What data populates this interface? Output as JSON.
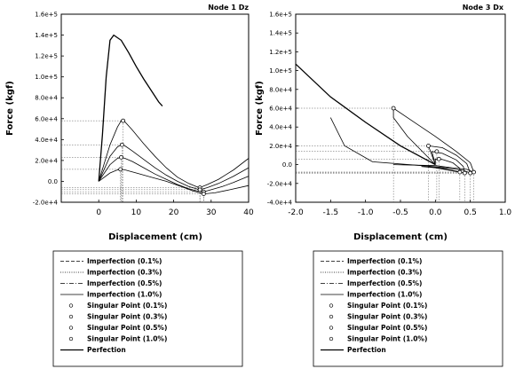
{
  "chart_data": [
    {
      "type": "line",
      "title": "Node 1 Dz",
      "xlabel": "Displacement (cm)",
      "ylabel": "Force (kgf)",
      "xlim": [
        -10,
        40
      ],
      "ylim": [
        -20000,
        160000
      ],
      "xticks": [
        0,
        10,
        20,
        30,
        40
      ],
      "xtick_labels": [
        "0",
        "10",
        "20",
        "30",
        "40"
      ],
      "yticks": [
        -20000,
        0,
        20000,
        40000,
        60000,
        80000,
        100000,
        120000,
        140000,
        160000
      ],
      "ytick_labels": [
        "-2.0e+4",
        "0.0",
        "2.0e+4",
        "4.0e+4",
        "6.0e+4",
        "8.0e+4",
        "1.0e+5",
        "1.2e+5",
        "1.4e+5",
        "1.6e+5"
      ],
      "series": [
        {
          "name": "Perfection",
          "style": "solid",
          "points": [
            [
              0,
              0
            ],
            [
              1,
              45000
            ],
            [
              2,
              100000
            ],
            [
              3,
              135000
            ],
            [
              4,
              140000
            ],
            [
              6,
              135000
            ],
            [
              8,
              123000
            ],
            [
              10,
              110000
            ],
            [
              12,
              98000
            ],
            [
              14,
              87000
            ],
            [
              16,
              76000
            ],
            [
              17,
              72000
            ]
          ]
        },
        {
          "name": "Imperfection (0.1%)",
          "style": "solid",
          "points": [
            [
              0,
              0
            ],
            [
              3,
              35000
            ],
            [
              5,
              52000
            ],
            [
              6,
              58000
            ],
            [
              7,
              57000
            ],
            [
              9,
              49000
            ],
            [
              12,
              36000
            ],
            [
              15,
              24000
            ],
            [
              18,
              13000
            ],
            [
              21,
              4000
            ],
            [
              24,
              -2000
            ],
            [
              26,
              -5000
            ],
            [
              27,
              -6000
            ],
            [
              29,
              -3000
            ],
            [
              32,
              2000
            ],
            [
              36,
              11000
            ],
            [
              40,
              22000
            ]
          ]
        },
        {
          "name": "Imperfection (0.3%)",
          "style": "solid",
          "points": [
            [
              0,
              0
            ],
            [
              3,
              24000
            ],
            [
              5,
              33000
            ],
            [
              6,
              35000
            ],
            [
              7,
              34000
            ],
            [
              9,
              29000
            ],
            [
              12,
              21000
            ],
            [
              15,
              13000
            ],
            [
              18,
              6000
            ],
            [
              21,
              0
            ],
            [
              24,
              -5000
            ],
            [
              26,
              -7000
            ],
            [
              27,
              -8000
            ],
            [
              29,
              -6000
            ],
            [
              32,
              -2000
            ],
            [
              36,
              5000
            ],
            [
              40,
              13000
            ]
          ]
        },
        {
          "name": "Imperfection (0.5%)",
          "style": "solid",
          "points": [
            [
              0,
              0
            ],
            [
              3,
              16000
            ],
            [
              5,
              22000
            ],
            [
              6,
              23000
            ],
            [
              7,
              22000
            ],
            [
              9,
              19000
            ],
            [
              12,
              13000
            ],
            [
              15,
              7000
            ],
            [
              18,
              2000
            ],
            [
              21,
              -3000
            ],
            [
              24,
              -7000
            ],
            [
              26,
              -9000
            ],
            [
              28,
              -10000
            ],
            [
              30,
              -8000
            ],
            [
              33,
              -5000
            ],
            [
              36,
              -1000
            ],
            [
              40,
              5000
            ]
          ]
        },
        {
          "name": "Imperfection (1.0%)",
          "style": "solid",
          "points": [
            [
              0,
              0
            ],
            [
              3,
              8000
            ],
            [
              5,
              11000
            ],
            [
              6,
              11500
            ],
            [
              7,
              11000
            ],
            [
              10,
              8000
            ],
            [
              14,
              4000
            ],
            [
              18,
              0
            ],
            [
              22,
              -5000
            ],
            [
              25,
              -9000
            ],
            [
              28,
              -12000
            ],
            [
              31,
              -11000
            ],
            [
              35,
              -8000
            ],
            [
              40,
              -4000
            ]
          ]
        }
      ],
      "singular_points": [
        {
          "name": "Singular Point (0.1%)",
          "points": [
            [
              6.5,
              58000
            ],
            [
              27,
              -6000
            ]
          ]
        },
        {
          "name": "Singular Point (0.3%)",
          "points": [
            [
              6.2,
              35000
            ],
            [
              27,
              -8000
            ]
          ]
        },
        {
          "name": "Singular Point (0.5%)",
          "points": [
            [
              6,
              23000
            ],
            [
              28,
              -10000
            ]
          ]
        },
        {
          "name": "Singular Point (1.0%)",
          "points": [
            [
              5.8,
              11500
            ],
            [
              28,
              -12000
            ]
          ]
        }
      ],
      "legend": "below"
    },
    {
      "type": "line",
      "title": "Node 3 Dx",
      "xlabel": "Displacement (cm)",
      "ylabel": "Force (kgf)",
      "xlim": [
        -2.0,
        1.0
      ],
      "ylim": [
        -40000,
        160000
      ],
      "xticks": [
        -2.0,
        -1.5,
        -1.0,
        -0.5,
        0.0,
        0.5,
        1.0
      ],
      "xtick_labels": [
        "-2.0",
        "-1.5",
        "-1.0",
        "-0.5",
        "0.0",
        "0.5",
        "1.0"
      ],
      "yticks": [
        -40000,
        -20000,
        0,
        20000,
        40000,
        60000,
        80000,
        100000,
        120000,
        140000,
        160000
      ],
      "ytick_labels": [
        "-4.0e+4",
        "-2.0e+4",
        "0.0",
        "2.0e+4",
        "4.0e+4",
        "6.0e+4",
        "8.0e+4",
        "1.0e+5",
        "1.2e+5",
        "1.4e+5",
        "1.6e+5"
      ],
      "series": [
        {
          "name": "Perfection",
          "style": "solid",
          "points": [
            [
              0,
              0
            ],
            [
              -0.5,
              20000
            ],
            [
              -1.0,
              45000
            ],
            [
              -1.5,
              72000
            ],
            [
              -2.0,
              107000
            ]
          ]
        },
        {
          "name": "Imperfection (0.1%)",
          "style": "solid",
          "points": [
            [
              0,
              0
            ],
            [
              -0.4,
              30000
            ],
            [
              -0.6,
              50000
            ],
            [
              -0.6,
              60000
            ],
            [
              -0.3,
              45000
            ],
            [
              0,
              30000
            ],
            [
              0.3,
              14000
            ],
            [
              0.5,
              2000
            ],
            [
              0.55,
              -8000
            ],
            [
              0.45,
              -5000
            ],
            [
              0.2,
              -3000
            ],
            [
              0,
              -1000
            ],
            [
              -0.6,
              0
            ]
          ]
        },
        {
          "name": "Imperfection (0.3%)",
          "style": "solid",
          "points": [
            [
              0,
              0
            ],
            [
              -0.1,
              20000
            ],
            [
              0.1,
              18000
            ],
            [
              0.3,
              10000
            ],
            [
              0.45,
              1000
            ],
            [
              0.5,
              -9000
            ],
            [
              0.4,
              -6000
            ],
            [
              0.1,
              -3000
            ],
            [
              -0.2,
              -1000
            ],
            [
              -0.9,
              3000
            ],
            [
              -1.3,
              20000
            ],
            [
              -1.5,
              50000
            ]
          ]
        },
        {
          "name": "Imperfection (0.5%)",
          "style": "solid",
          "points": [
            [
              0,
              0
            ],
            [
              -0.05,
              14000
            ],
            [
              0.1,
              12000
            ],
            [
              0.3,
              5000
            ],
            [
              0.4,
              -2000
            ],
            [
              0.42,
              -9000
            ],
            [
              0.3,
              -7000
            ],
            [
              0.1,
              -4000
            ],
            [
              -0.2,
              -2000
            ]
          ]
        },
        {
          "name": "Imperfection (1.0%)",
          "style": "solid",
          "points": [
            [
              0,
              0
            ],
            [
              0,
              6000
            ],
            [
              0.1,
              5500
            ],
            [
              0.25,
              2000
            ],
            [
              0.35,
              -4000
            ],
            [
              0.35,
              -8000
            ],
            [
              0.2,
              -6000
            ],
            [
              0.05,
              -4000
            ],
            [
              -0.1,
              -2000
            ]
          ]
        }
      ],
      "singular_points": [
        {
          "name": "Singular Point (0.1%)",
          "points": [
            [
              -0.6,
              60000
            ],
            [
              0.55,
              -8000
            ]
          ]
        },
        {
          "name": "Singular Point (0.3%)",
          "points": [
            [
              -0.1,
              20000
            ],
            [
              0.5,
              -9000
            ]
          ]
        },
        {
          "name": "Singular Point (0.5%)",
          "points": [
            [
              0.02,
              14000
            ],
            [
              0.42,
              -9000
            ]
          ]
        },
        {
          "name": "Singular Point (1.0%)",
          "points": [
            [
              0.05,
              6000
            ],
            [
              0.35,
              -8000
            ]
          ]
        }
      ],
      "legend": "below"
    }
  ],
  "legend_entries": [
    {
      "label": "Imperfection (0.1%)",
      "kind": "line-dash"
    },
    {
      "label": "Imperfection (0.3%)",
      "kind": "line-dot"
    },
    {
      "label": "Imperfection (0.5%)",
      "kind": "line-dashdot"
    },
    {
      "label": "Imperfection (1.0%)",
      "kind": "line-thin"
    },
    {
      "label": "Singular Point (0.1%)",
      "kind": "marker"
    },
    {
      "label": "Singular Point (0.3%)",
      "kind": "marker"
    },
    {
      "label": "Singular Point (0.5%)",
      "kind": "marker"
    },
    {
      "label": "Singular Point (1.0%)",
      "kind": "marker"
    },
    {
      "label": "Perfection",
      "kind": "line-solid"
    }
  ]
}
